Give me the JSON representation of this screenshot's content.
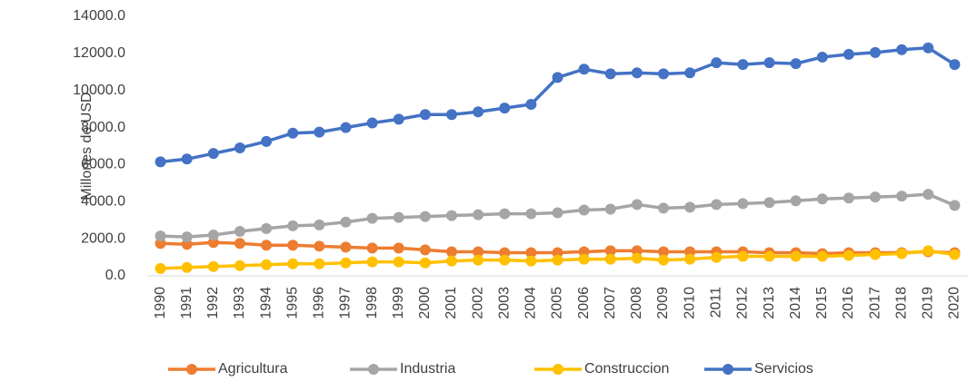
{
  "chart_data": {
    "type": "line",
    "y_label": "Millones de USD",
    "categories": [
      "1990",
      "1991",
      "1992",
      "1993",
      "1994",
      "1995",
      "1996",
      "1997",
      "1998",
      "1999",
      "2000",
      "2001",
      "2002",
      "2003",
      "2004",
      "2005",
      "2006",
      "2007",
      "2008",
      "2009",
      "2010",
      "2011",
      "2012",
      "2013",
      "2014",
      "2015",
      "2016",
      "2017",
      "2018",
      "2019",
      "2020"
    ],
    "ylim": [
      0,
      14000
    ],
    "yticks": [
      {
        "value": 0,
        "label": "0.0"
      },
      {
        "value": 2000,
        "label": "2000.0"
      },
      {
        "value": 4000,
        "label": "4000.0"
      },
      {
        "value": 6000,
        "label": "6000.0"
      },
      {
        "value": 8000,
        "label": "8000.0"
      },
      {
        "value": 10000,
        "label": "10000.0"
      },
      {
        "value": 12000,
        "label": "12000.0"
      },
      {
        "value": 14000,
        "label": "14000.0"
      }
    ],
    "grid": false,
    "legend": "bottom",
    "series": [
      {
        "name": "Agricultura",
        "color": "#ed7d31",
        "values": [
          1750,
          1700,
          1800,
          1750,
          1650,
          1650,
          1600,
          1550,
          1500,
          1500,
          1400,
          1300,
          1300,
          1250,
          1250,
          1250,
          1300,
          1350,
          1350,
          1300,
          1300,
          1300,
          1300,
          1250,
          1250,
          1200,
          1250,
          1250,
          1250,
          1300,
          1250
        ]
      },
      {
        "name": "Industria",
        "color": "#a5a5a5",
        "values": [
          2150,
          2100,
          2200,
          2400,
          2550,
          2700,
          2750,
          2900,
          3100,
          3150,
          3200,
          3250,
          3300,
          3350,
          3350,
          3400,
          3550,
          3600,
          3850,
          3650,
          3700,
          3850,
          3900,
          3950,
          4050,
          4150,
          4200,
          4250,
          4300,
          4400,
          3800
        ]
      },
      {
        "name": "Construccion",
        "color": "#ffc000",
        "values": [
          400,
          450,
          500,
          550,
          600,
          650,
          650,
          700,
          750,
          750,
          700,
          800,
          850,
          850,
          800,
          850,
          900,
          900,
          950,
          850,
          900,
          1000,
          1050,
          1050,
          1050,
          1050,
          1100,
          1150,
          1200,
          1350,
          1150
        ]
      },
      {
        "name": "Servicios",
        "color": "#4472c4",
        "values": [
          6150,
          6300,
          6600,
          6900,
          7250,
          7700,
          7750,
          8000,
          8250,
          8450,
          8700,
          8700,
          8850,
          9050,
          9250,
          10700,
          11150,
          10900,
          10950,
          10900,
          10950,
          11500,
          11400,
          11500,
          11450,
          11800,
          11950,
          12050,
          12200,
          12300,
          11400
        ]
      }
    ]
  }
}
